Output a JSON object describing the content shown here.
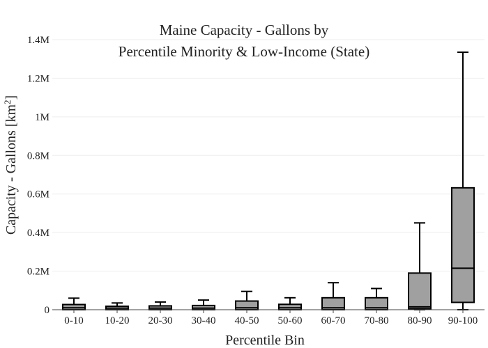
{
  "chart_data": {
    "type": "box",
    "title_lines": [
      "Maine Capacity - Gallons by",
      "Percentile Minority & Low-Income (State)"
    ],
    "xlabel": "Percentile Bin",
    "ylabel_main": "Capacity - Gallons  [km",
    "ylabel_sup": "2",
    "ylabel_end": "]",
    "categories": [
      "0-10",
      "10-20",
      "20-30",
      "30-40",
      "40-50",
      "50-60",
      "60-70",
      "70-80",
      "80-90",
      "90-100"
    ],
    "y_ticks": [
      0,
      200000,
      400000,
      600000,
      800000,
      1000000,
      1200000,
      1400000
    ],
    "y_tick_labels": [
      "0",
      "0.2M",
      "0.4M",
      "0.6M",
      "0.8M",
      "1M",
      "1.2M",
      "1.4M"
    ],
    "ylim": [
      0,
      1400000
    ],
    "grid": true,
    "colors": {
      "box_fill": "#a0a0a0",
      "box_stroke": "#000000",
      "grid": "#eeeeee",
      "axis": "#444444"
    },
    "boxes": [
      {
        "category": "0-10",
        "min": 0,
        "q1": 0,
        "median": 10000,
        "q3": 27000,
        "max": 60000
      },
      {
        "category": "10-20",
        "min": 0,
        "q1": 0,
        "median": 8000,
        "q3": 18000,
        "max": 35000
      },
      {
        "category": "20-30",
        "min": 0,
        "q1": 0,
        "median": 8000,
        "q3": 20000,
        "max": 40000
      },
      {
        "category": "30-40",
        "min": 0,
        "q1": 0,
        "median": 8000,
        "q3": 22000,
        "max": 50000
      },
      {
        "category": "40-50",
        "min": 0,
        "q1": 0,
        "median": 10000,
        "q3": 45000,
        "max": 95000
      },
      {
        "category": "50-60",
        "min": 0,
        "q1": 0,
        "median": 10000,
        "q3": 28000,
        "max": 62000
      },
      {
        "category": "60-70",
        "min": 0,
        "q1": 0,
        "median": 10000,
        "q3": 62000,
        "max": 140000
      },
      {
        "category": "70-80",
        "min": 0,
        "q1": 0,
        "median": 10000,
        "q3": 62000,
        "max": 110000
      },
      {
        "category": "80-90",
        "min": 0,
        "q1": 5000,
        "median": 15000,
        "q3": 190000,
        "max": 450000
      },
      {
        "category": "90-100",
        "min": 0,
        "q1": 38000,
        "median": 215000,
        "q3": 632000,
        "max": 1335000
      }
    ]
  }
}
